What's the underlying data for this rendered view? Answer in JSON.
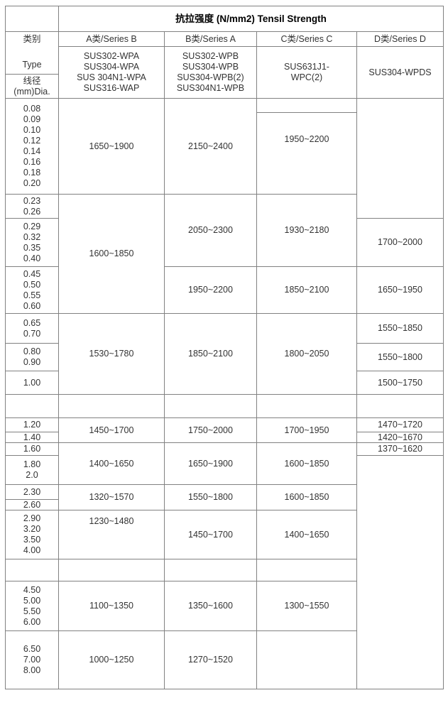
{
  "page": {
    "background": "#ffffff"
  },
  "table": {
    "colors": {
      "border": "#818181",
      "text": "#333333",
      "title_text": "#000000"
    },
    "title": "抗拉强度 (N/mm2) Tensil Strength",
    "cells": [
      {
        "name": "corner-cell",
        "col": 1,
        "row": 1,
        "lines": []
      },
      {
        "name": "table-title",
        "col": 2,
        "row": 1,
        "colspan": 4,
        "lines": [
          "抗拉强度 (N/mm2) Tensil Strength"
        ],
        "cls": "title"
      },
      {
        "name": "category-type-header",
        "col": 1,
        "row": 2,
        "rowspan": 2,
        "lines": [
          "类别",
          "Type"
        ],
        "cls": "between"
      },
      {
        "name": "col-header-series-a",
        "col": 2,
        "row": 2,
        "lines": [
          "A类/Series B"
        ]
      },
      {
        "name": "col-header-series-b",
        "col": 3,
        "row": 2,
        "lines": [
          "B类/Series A"
        ]
      },
      {
        "name": "col-header-series-c",
        "col": 4,
        "row": 2,
        "lines": [
          "C类/Series C"
        ]
      },
      {
        "name": "col-header-series-d",
        "col": 5,
        "row": 2,
        "lines": [
          "D类/Series D"
        ]
      },
      {
        "name": "series-list-a",
        "col": 2,
        "row": 3,
        "rowspan": 2,
        "lines": [
          "SUS302-WPA",
          "SUS304-WPA",
          "SUS 304N1-WPA",
          "SUS316-WAP"
        ]
      },
      {
        "name": "series-list-b",
        "col": 3,
        "row": 3,
        "rowspan": 2,
        "lines": [
          "SUS302-WPB",
          "SUS304-WPB",
          "SUS304-WPB(2)",
          "SUS304N1-WPB"
        ]
      },
      {
        "name": "series-list-c",
        "col": 4,
        "row": 3,
        "rowspan": 2,
        "lines": [
          "SUS631J1-",
          "WPC(2)"
        ]
      },
      {
        "name": "series-list-d",
        "col": 5,
        "row": 3,
        "rowspan": 2,
        "lines": [
          "SUS304-WPDS"
        ]
      },
      {
        "name": "dia-header",
        "col": 1,
        "row": 4,
        "lines": [
          "线径",
          "(mm)Dia."
        ]
      },
      {
        "name": "dia-group",
        "col": 1,
        "row": 5,
        "rowspan": 2,
        "lines": [
          "0.08",
          "0.09",
          "0.10",
          "0.12",
          "0.14",
          "0.16",
          "0.18",
          "0.20"
        ]
      },
      {
        "name": "dia-group",
        "col": 1,
        "row": 7,
        "lines": [
          "0.23",
          "0.26"
        ]
      },
      {
        "name": "dia-group",
        "col": 1,
        "row": 8,
        "lines": [
          "0.29",
          "0.32",
          "0.35",
          "0.40"
        ]
      },
      {
        "name": "dia-group",
        "col": 1,
        "row": 9,
        "lines": [
          "0.45",
          "0.50",
          "0.55",
          "0.60"
        ]
      },
      {
        "name": "dia-group",
        "col": 1,
        "row": 10,
        "lines": [
          "0.65",
          "0.70"
        ]
      },
      {
        "name": "dia-group",
        "col": 1,
        "row": 11,
        "lines": [
          "0.80",
          "0.90"
        ]
      },
      {
        "name": "dia-group",
        "col": 1,
        "row": 12,
        "lines": [
          "1.00"
        ]
      },
      {
        "name": "spacer-cell",
        "col": 1,
        "row": 13,
        "lines": []
      },
      {
        "name": "dia-group",
        "col": 1,
        "row": 14,
        "lines": [
          "1.20"
        ]
      },
      {
        "name": "dia-group",
        "col": 1,
        "row": 15,
        "lines": [
          "1.40"
        ]
      },
      {
        "name": "dia-group",
        "col": 1,
        "row": 16,
        "lines": [
          "1.60"
        ]
      },
      {
        "name": "dia-group",
        "col": 1,
        "row": 17,
        "lines": [
          "1.80",
          "2.0"
        ]
      },
      {
        "name": "dia-group",
        "col": 1,
        "row": 18,
        "lines": [
          "2.30"
        ]
      },
      {
        "name": "dia-group",
        "col": 1,
        "row": 19,
        "lines": [
          "2.60"
        ]
      },
      {
        "name": "dia-group",
        "col": 1,
        "row": 20,
        "lines": [
          "2.90",
          "3.20",
          "3.50",
          "4.00"
        ]
      },
      {
        "name": "spacer-cell",
        "col": 1,
        "row": 21,
        "lines": []
      },
      {
        "name": "dia-group",
        "col": 1,
        "row": 22,
        "lines": [
          "4.50",
          "5.00",
          "5.50",
          "6.00"
        ]
      },
      {
        "name": "dia-group",
        "col": 1,
        "row": 23,
        "lines": [
          "6.50",
          "7.00",
          "8.00"
        ]
      },
      {
        "name": "strength-cell",
        "col": 2,
        "row": 5,
        "rowspan": 2,
        "lines": [
          "1650~1900"
        ]
      },
      {
        "name": "strength-cell",
        "col": 2,
        "row": 7,
        "rowspan": 3,
        "lines": [
          "1600~1850"
        ]
      },
      {
        "name": "strength-cell",
        "col": 2,
        "row": 10,
        "rowspan": 3,
        "lines": [
          "1530~1780"
        ]
      },
      {
        "name": "spacer-cell",
        "col": 2,
        "row": 13,
        "lines": []
      },
      {
        "name": "strength-cell",
        "col": 2,
        "row": 14,
        "rowspan": 2,
        "lines": [
          "1450~1700"
        ]
      },
      {
        "name": "strength-cell",
        "col": 2,
        "row": 16,
        "rowspan": 2,
        "lines": [
          "1400~1650"
        ]
      },
      {
        "name": "strength-cell",
        "col": 2,
        "row": 18,
        "rowspan": 2,
        "lines": [
          "1320~1570"
        ]
      },
      {
        "name": "strength-cell",
        "col": 2,
        "row": 20,
        "lines": [
          "1230~1480"
        ],
        "cls": "vtop",
        "pt": 8
      },
      {
        "name": "spacer-cell",
        "col": 2,
        "row": 21,
        "lines": []
      },
      {
        "name": "strength-cell",
        "col": 2,
        "row": 22,
        "lines": [
          "1100~1350"
        ]
      },
      {
        "name": "strength-cell",
        "col": 2,
        "row": 23,
        "lines": [
          "1000~1250"
        ]
      },
      {
        "name": "strength-cell",
        "col": 3,
        "row": 5,
        "rowspan": 2,
        "lines": [
          "2150~2400"
        ]
      },
      {
        "name": "strength-cell",
        "col": 3,
        "row": 7,
        "rowspan": 2,
        "lines": [
          "2050~2300"
        ]
      },
      {
        "name": "strength-cell",
        "col": 3,
        "row": 9,
        "lines": [
          "1950~2200"
        ]
      },
      {
        "name": "strength-cell",
        "col": 3,
        "row": 10,
        "rowspan": 3,
        "lines": [
          "1850~2100"
        ]
      },
      {
        "name": "spacer-cell",
        "col": 3,
        "row": 13,
        "lines": []
      },
      {
        "name": "strength-cell",
        "col": 3,
        "row": 14,
        "rowspan": 2,
        "lines": [
          "1750~2000"
        ]
      },
      {
        "name": "strength-cell",
        "col": 3,
        "row": 16,
        "rowspan": 2,
        "lines": [
          "1650~1900"
        ]
      },
      {
        "name": "strength-cell",
        "col": 3,
        "row": 18,
        "rowspan": 2,
        "lines": [
          "1550~1800"
        ]
      },
      {
        "name": "strength-cell",
        "col": 3,
        "row": 20,
        "lines": [
          "1450~1700"
        ]
      },
      {
        "name": "spacer-cell",
        "col": 3,
        "row": 21,
        "lines": []
      },
      {
        "name": "strength-cell",
        "col": 3,
        "row": 22,
        "lines": [
          "1350~1600"
        ]
      },
      {
        "name": "strength-cell",
        "col": 3,
        "row": 23,
        "lines": [
          "1270~1520"
        ]
      },
      {
        "name": "empty-cell",
        "col": 4,
        "row": 5,
        "lines": []
      },
      {
        "name": "strength-cell",
        "col": 4,
        "row": 6,
        "lines": [
          "1950~2200"
        ],
        "cls": "vtop",
        "pt": 30
      },
      {
        "name": "strength-cell",
        "col": 4,
        "row": 7,
        "rowspan": 2,
        "lines": [
          "1930~2180"
        ]
      },
      {
        "name": "strength-cell",
        "col": 4,
        "row": 9,
        "lines": [
          "1850~2100"
        ]
      },
      {
        "name": "strength-cell",
        "col": 4,
        "row": 10,
        "rowspan": 3,
        "lines": [
          "1800~2050"
        ]
      },
      {
        "name": "spacer-cell",
        "col": 4,
        "row": 13,
        "lines": []
      },
      {
        "name": "strength-cell",
        "col": 4,
        "row": 14,
        "rowspan": 2,
        "lines": [
          "1700~1950"
        ]
      },
      {
        "name": "strength-cell",
        "col": 4,
        "row": 16,
        "rowspan": 2,
        "lines": [
          "1600~1850"
        ]
      },
      {
        "name": "strength-cell",
        "col": 4,
        "row": 18,
        "rowspan": 2,
        "lines": [
          "1600~1850"
        ]
      },
      {
        "name": "strength-cell",
        "col": 4,
        "row": 20,
        "lines": [
          "1400~1650"
        ]
      },
      {
        "name": "spacer-cell",
        "col": 4,
        "row": 21,
        "lines": []
      },
      {
        "name": "strength-cell",
        "col": 4,
        "row": 22,
        "lines": [
          "1300~1550"
        ]
      },
      {
        "name": "empty-cell",
        "col": 4,
        "row": 23,
        "lines": []
      },
      {
        "name": "empty-cell",
        "col": 5,
        "row": 5,
        "rowspan": 3,
        "lines": []
      },
      {
        "name": "strength-cell",
        "col": 5,
        "row": 8,
        "lines": [
          "1700~2000"
        ]
      },
      {
        "name": "strength-cell",
        "col": 5,
        "row": 9,
        "lines": [
          "1650~1950"
        ]
      },
      {
        "name": "strength-cell",
        "col": 5,
        "row": 10,
        "lines": [
          "1550~1850"
        ]
      },
      {
        "name": "strength-cell",
        "col": 5,
        "row": 11,
        "lines": [
          "1550~1800"
        ]
      },
      {
        "name": "strength-cell",
        "col": 5,
        "row": 12,
        "lines": [
          "1500~1750"
        ]
      },
      {
        "name": "spacer-cell",
        "col": 5,
        "row": 13,
        "lines": []
      },
      {
        "name": "strength-cell",
        "col": 5,
        "row": 14,
        "lines": [
          "1470~1720"
        ]
      },
      {
        "name": "strength-cell",
        "col": 5,
        "row": 15,
        "lines": [
          "1420~1670"
        ]
      },
      {
        "name": "strength-cell",
        "col": 5,
        "row": 16,
        "lines": [
          "1370~1620"
        ]
      },
      {
        "name": "empty-cell",
        "col": 5,
        "row": 17,
        "rowspan": 7,
        "lines": []
      }
    ]
  }
}
